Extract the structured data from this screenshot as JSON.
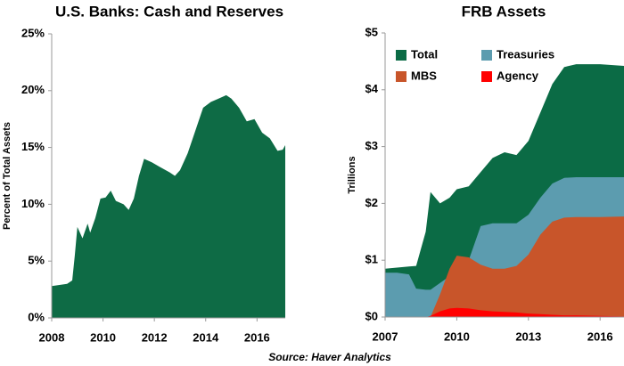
{
  "chart_data": [
    {
      "type": "area",
      "title": "U.S. Banks: Cash and Reserves",
      "y_label": "Percent of Total Assets",
      "color": "#0e6b45",
      "x": [
        2008.0,
        2008.3,
        2008.6,
        2008.8,
        2008.9,
        2009.0,
        2009.2,
        2009.4,
        2009.5,
        2009.7,
        2009.9,
        2010.1,
        2010.3,
        2010.5,
        2010.8,
        2011.0,
        2011.2,
        2011.4,
        2011.6,
        2011.9,
        2012.2,
        2012.6,
        2012.8,
        2013.0,
        2013.3,
        2013.6,
        2013.9,
        2014.2,
        2014.5,
        2014.8,
        2015.0,
        2015.3,
        2015.6,
        2015.9,
        2016.2,
        2016.5,
        2016.8,
        2017.0,
        2017.1
      ],
      "values": [
        2.8,
        2.9,
        3.0,
        3.3,
        5.5,
        8.0,
        7.0,
        8.3,
        7.5,
        8.8,
        10.5,
        10.6,
        11.2,
        10.3,
        10.0,
        9.5,
        10.5,
        12.5,
        14.0,
        13.7,
        13.3,
        12.8,
        12.5,
        13.0,
        14.5,
        16.5,
        18.5,
        19.0,
        19.3,
        19.6,
        19.3,
        18.5,
        17.3,
        17.5,
        16.3,
        15.8,
        14.7,
        14.8,
        15.2
      ],
      "xlim": [
        2008,
        2017.1
      ],
      "xticks": [
        2008,
        2010,
        2012,
        2014,
        2016
      ],
      "ylim": [
        0,
        25
      ],
      "yticks": [
        {
          "value": 0,
          "label": "0%"
        },
        {
          "value": 5,
          "label": "5%"
        },
        {
          "value": 10,
          "label": "10%"
        },
        {
          "value": 15,
          "label": "15%"
        },
        {
          "value": 20,
          "label": "20%"
        },
        {
          "value": 25,
          "label": "25%"
        }
      ],
      "grid": false
    },
    {
      "type": "area",
      "title": "FRB Assets",
      "y_label": "Trillions",
      "x": [
        2007,
        2007.5,
        2008,
        2008.3,
        2008.7,
        2008.9,
        2009.3,
        2009.7,
        2010,
        2010.5,
        2011,
        2011.5,
        2012,
        2012.5,
        2013,
        2013.5,
        2014,
        2014.5,
        2015,
        2016,
        2017
      ],
      "series": [
        {
          "name": "Total",
          "color": "#0b6b45",
          "values": [
            0.85,
            0.87,
            0.89,
            0.9,
            1.5,
            2.2,
            2.0,
            2.1,
            2.25,
            2.3,
            2.55,
            2.8,
            2.9,
            2.85,
            3.1,
            3.6,
            4.1,
            4.4,
            4.45,
            4.45,
            4.42
          ]
        },
        {
          "name": "Treasuries",
          "color": "#5c9caf",
          "values": [
            0.78,
            0.78,
            0.75,
            0.5,
            0.48,
            0.48,
            0.6,
            0.72,
            0.78,
            1.0,
            1.6,
            1.65,
            1.65,
            1.65,
            1.8,
            2.1,
            2.35,
            2.45,
            2.46,
            2.46,
            2.46
          ]
        },
        {
          "name": "MBS",
          "color": "#c8552a",
          "values": [
            0,
            0,
            0,
            0,
            0,
            0,
            0.4,
            0.85,
            1.08,
            1.05,
            0.92,
            0.85,
            0.85,
            0.9,
            1.1,
            1.45,
            1.68,
            1.75,
            1.76,
            1.76,
            1.77
          ]
        },
        {
          "name": "Agency",
          "color": "#ff0000",
          "values": [
            0,
            0,
            0,
            0,
            0,
            0.02,
            0.1,
            0.15,
            0.16,
            0.15,
            0.12,
            0.1,
            0.09,
            0.08,
            0.06,
            0.05,
            0.04,
            0.03,
            0.03,
            0.02,
            0.01
          ]
        }
      ],
      "xlim": [
        2007,
        2017
      ],
      "xticks": [
        2007,
        2010,
        2013,
        2016
      ],
      "ylim": [
        0,
        5
      ],
      "yticks": [
        {
          "value": 0,
          "label": "$0"
        },
        {
          "value": 1,
          "label": "$1"
        },
        {
          "value": 2,
          "label": "$2"
        },
        {
          "value": 3,
          "label": "$3"
        },
        {
          "value": 4,
          "label": "$4"
        },
        {
          "value": 5,
          "label": "$5"
        }
      ],
      "grid": false,
      "legend": "top-left"
    }
  ],
  "source": "Source: Haver Analytics"
}
